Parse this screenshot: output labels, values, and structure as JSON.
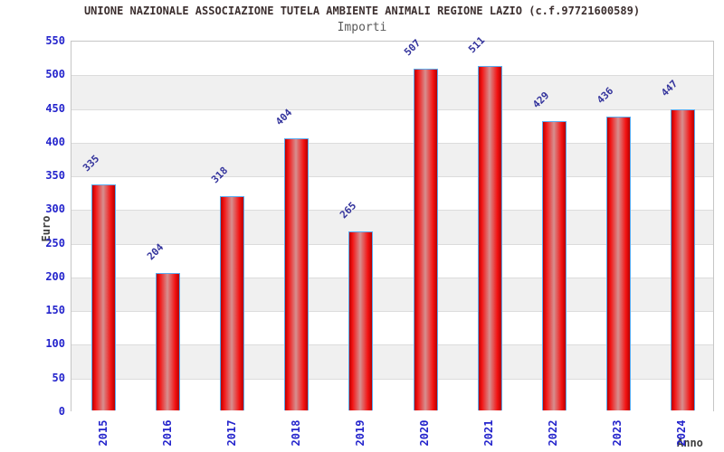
{
  "title": "UNIONE NAZIONALE ASSOCIAZIONE TUTELA AMBIENTE ANIMALI REGIONE LAZIO (c.f.97721600589)",
  "subtitle": "Importi",
  "chart_data": {
    "type": "bar",
    "title": "Importi",
    "categories": [
      "2015",
      "2016",
      "2017",
      "2018",
      "2019",
      "2020",
      "2021",
      "2022",
      "2023",
      "2024"
    ],
    "values": [
      335,
      204,
      318,
      404,
      265,
      507,
      511,
      429,
      436,
      447
    ],
    "xlabel": "Anno",
    "ylabel": "Euro",
    "ylim": [
      0,
      550
    ],
    "ytick_step": 50,
    "yticks": [
      0,
      50,
      100,
      150,
      200,
      250,
      300,
      350,
      400,
      450,
      500,
      550
    ],
    "grid": true,
    "legend_position": "none",
    "background_bands": "alternating horizontal 50-unit stripes",
    "value_label_rotation_deg": -45,
    "xtick_rotation_deg": -90
  },
  "colors": {
    "background": "#ffffff",
    "title_text": "#3c2f2f",
    "subtitle_text": "#5a5a5a",
    "axis_title_text": "#3d3d3d",
    "tick_label_text": "#2424cc",
    "value_label_text": "#33339c",
    "band_light": "#ffffff",
    "band_dark": "#f0f0f0",
    "gridline": "#dcdcdc",
    "plot_border": "#c6c6c6",
    "bar_border": "#5aabf0",
    "bar_red_dark": "#b80000",
    "bar_red": "#f31313",
    "bar_highlight": "#d68f8f"
  }
}
